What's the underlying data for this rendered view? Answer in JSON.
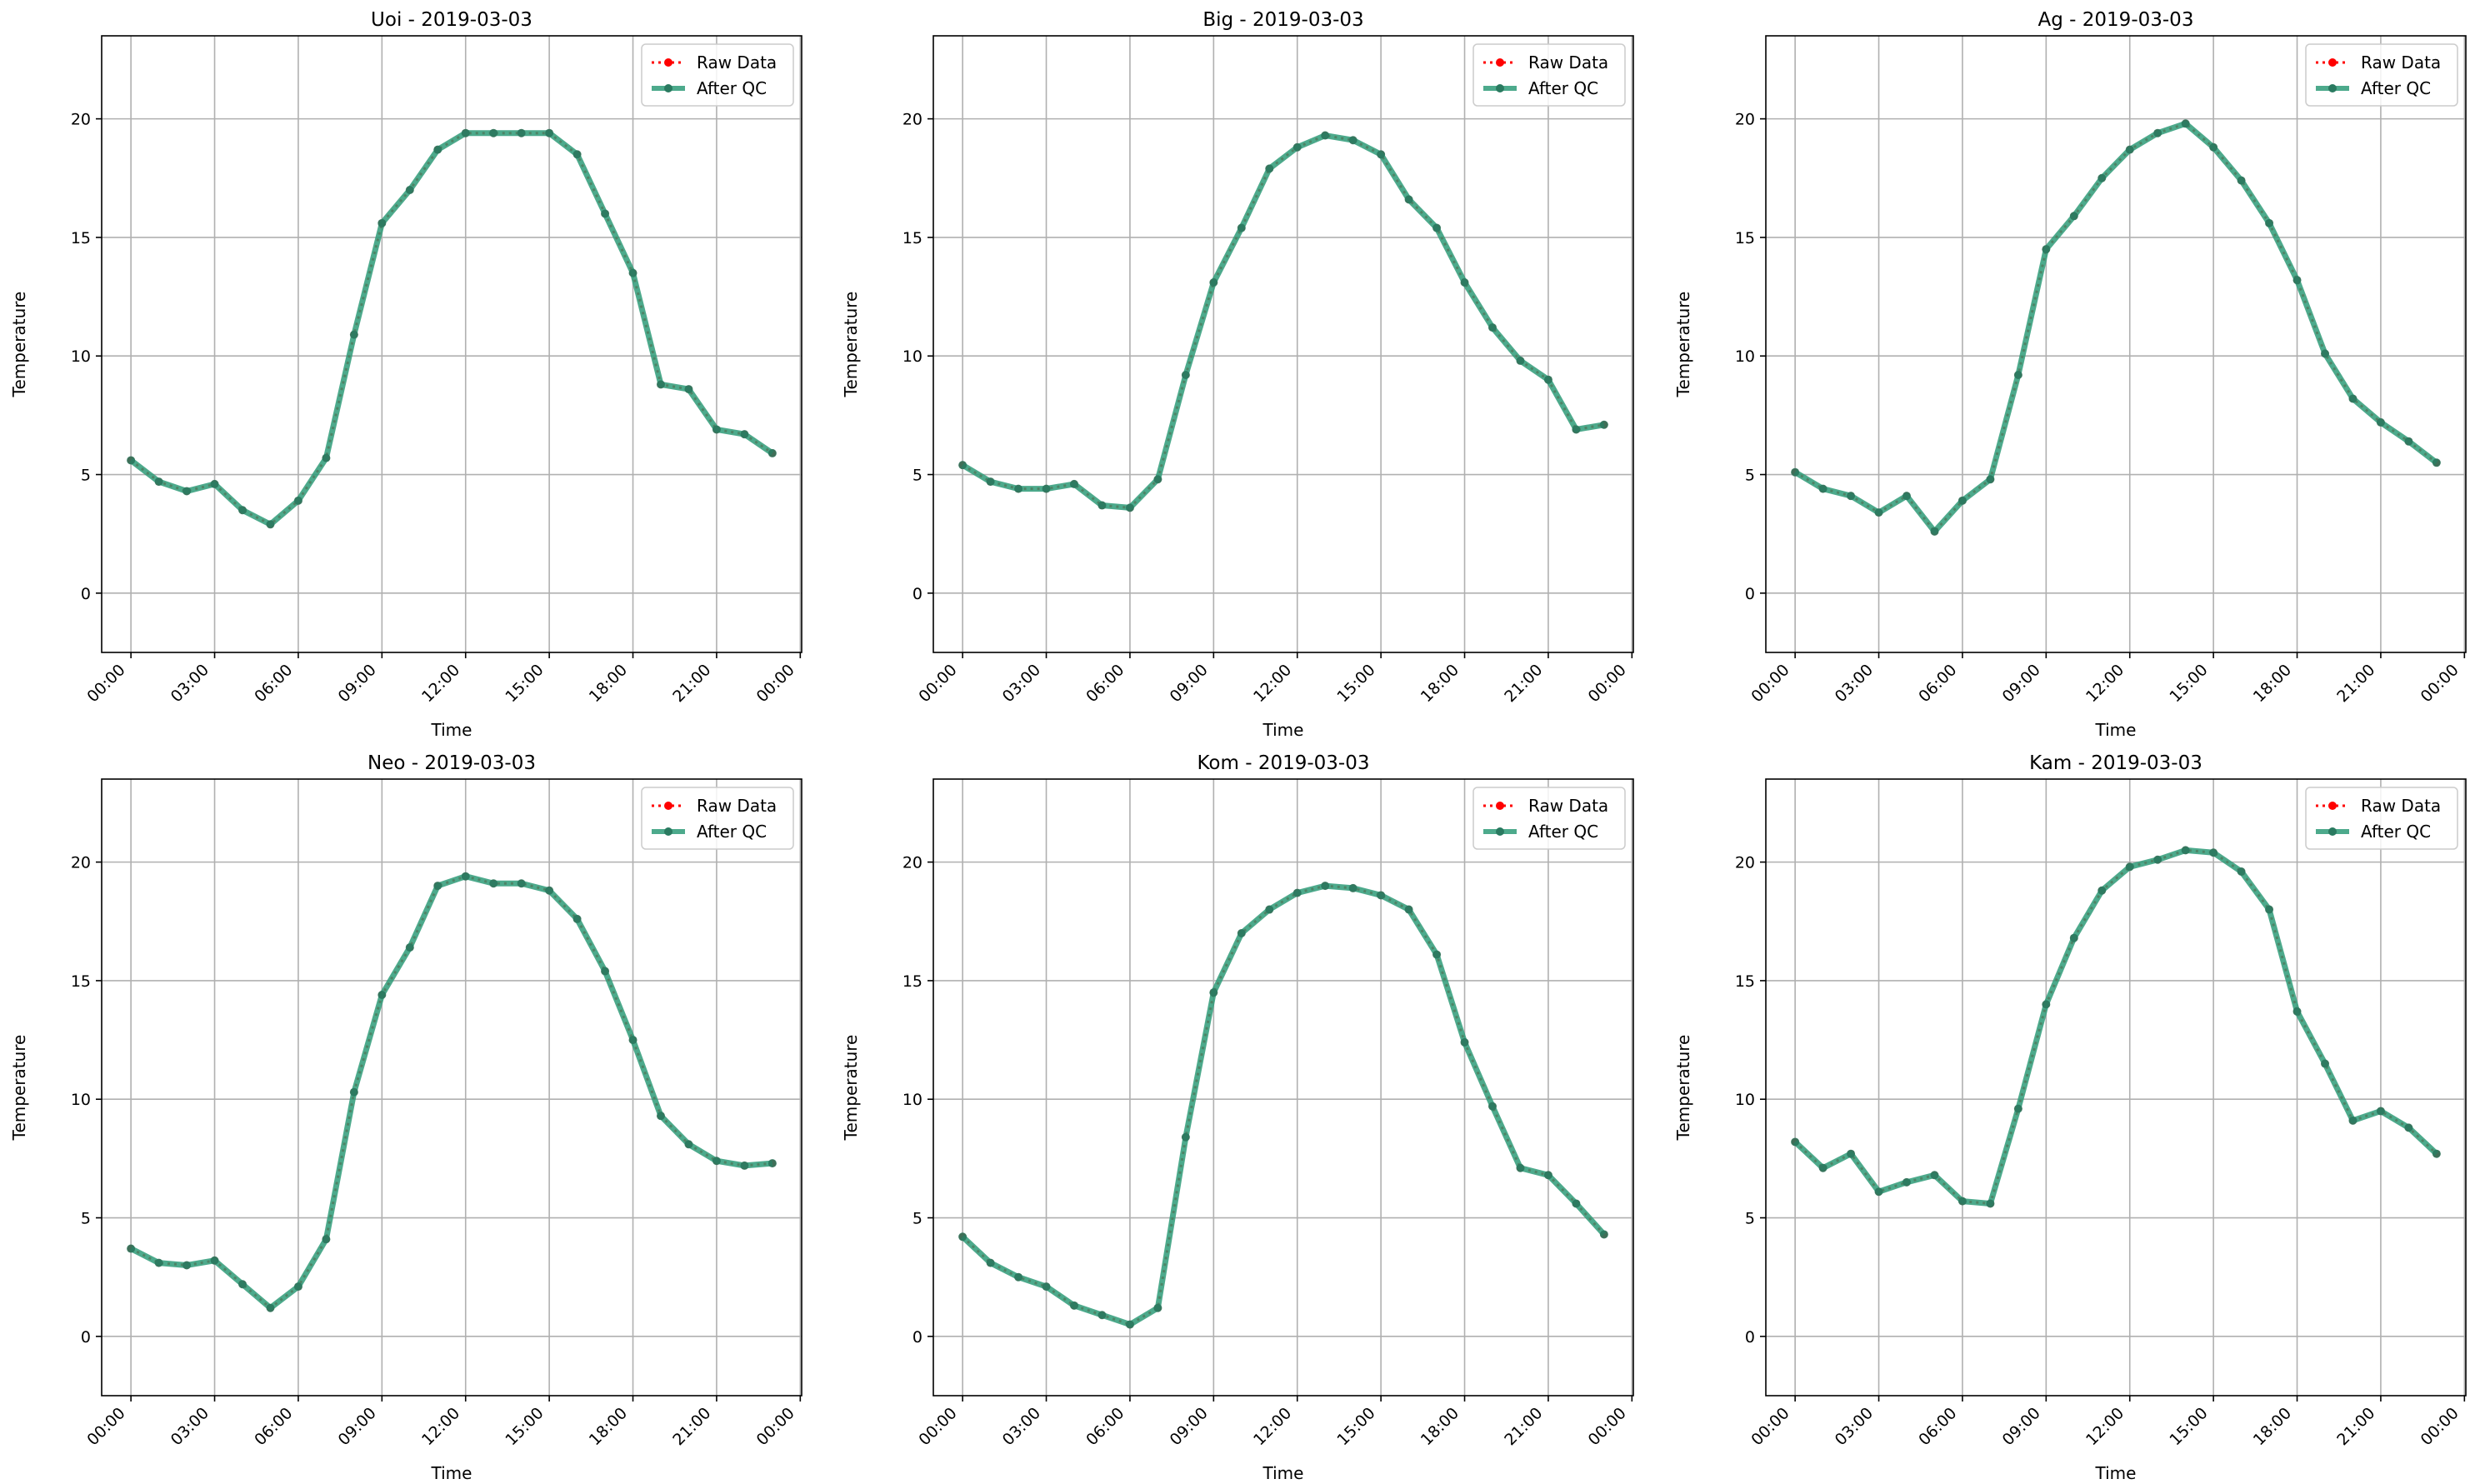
{
  "figure": {
    "background": "#ffffff"
  },
  "style": {
    "raw_color": "#ff0000",
    "qc_color": "#2e9b78",
    "grid_color": "#b0b0b0",
    "axis_color": "#000000"
  },
  "chart_data": [
    {
      "type": "line",
      "title": "Uoi - 2019-03-03",
      "xlabel": "Time",
      "ylabel": "Temperature",
      "x": [
        "00:00",
        "01:00",
        "02:00",
        "03:00",
        "04:00",
        "05:00",
        "06:00",
        "07:00",
        "08:00",
        "09:00",
        "10:00",
        "11:00",
        "12:00",
        "13:00",
        "14:00",
        "15:00",
        "16:00",
        "17:00",
        "18:00",
        "19:00",
        "20:00",
        "21:00",
        "22:00",
        "23:00"
      ],
      "x_ticks": [
        "00:00",
        "03:00",
        "06:00",
        "09:00",
        "12:00",
        "15:00",
        "18:00",
        "21:00",
        "00:00"
      ],
      "ylim": [
        -2.5,
        23.5
      ],
      "y_ticks": [
        0,
        5,
        10,
        15,
        20
      ],
      "grid": true,
      "legend_position": "top-right",
      "series": [
        {
          "name": "Raw Data",
          "values": [
            5.6,
            4.7,
            4.3,
            4.6,
            3.5,
            2.9,
            3.9,
            5.7,
            10.9,
            15.6,
            17.0,
            18.7,
            19.4,
            19.4,
            19.4,
            19.4,
            18.5,
            16.0,
            13.5,
            8.8,
            8.6,
            6.9,
            6.7,
            5.9
          ]
        },
        {
          "name": "After QC",
          "values": [
            5.6,
            4.7,
            4.3,
            4.6,
            3.5,
            2.9,
            3.9,
            5.7,
            10.9,
            15.6,
            17.0,
            18.7,
            19.4,
            19.4,
            19.4,
            19.4,
            18.5,
            16.0,
            13.5,
            8.8,
            8.6,
            6.9,
            6.7,
            5.9
          ]
        }
      ]
    },
    {
      "type": "line",
      "title": "Big - 2019-03-03",
      "xlabel": "Time",
      "ylabel": "Temperature",
      "x": [
        "00:00",
        "01:00",
        "02:00",
        "03:00",
        "04:00",
        "05:00",
        "06:00",
        "07:00",
        "08:00",
        "09:00",
        "10:00",
        "11:00",
        "12:00",
        "13:00",
        "14:00",
        "15:00",
        "16:00",
        "17:00",
        "18:00",
        "19:00",
        "20:00",
        "21:00",
        "22:00",
        "23:00"
      ],
      "x_ticks": [
        "00:00",
        "03:00",
        "06:00",
        "09:00",
        "12:00",
        "15:00",
        "18:00",
        "21:00",
        "00:00"
      ],
      "ylim": [
        -2.5,
        23.5
      ],
      "y_ticks": [
        0,
        5,
        10,
        15,
        20
      ],
      "grid": true,
      "legend_position": "top-right",
      "series": [
        {
          "name": "Raw Data",
          "values": [
            5.4,
            4.7,
            4.4,
            4.4,
            4.6,
            3.7,
            3.6,
            4.8,
            9.2,
            13.1,
            15.4,
            17.9,
            18.8,
            19.3,
            19.1,
            18.5,
            16.6,
            15.4,
            13.1,
            11.2,
            9.8,
            9.0,
            6.9,
            7.1
          ]
        },
        {
          "name": "After QC",
          "values": [
            5.4,
            4.7,
            4.4,
            4.4,
            4.6,
            3.7,
            3.6,
            4.8,
            9.2,
            13.1,
            15.4,
            17.9,
            18.8,
            19.3,
            19.1,
            18.5,
            16.6,
            15.4,
            13.1,
            11.2,
            9.8,
            9.0,
            6.9,
            7.1
          ]
        }
      ]
    },
    {
      "type": "line",
      "title": "Ag - 2019-03-03",
      "xlabel": "Time",
      "ylabel": "Temperature",
      "x": [
        "00:00",
        "01:00",
        "02:00",
        "03:00",
        "04:00",
        "05:00",
        "06:00",
        "07:00",
        "08:00",
        "09:00",
        "10:00",
        "11:00",
        "12:00",
        "13:00",
        "14:00",
        "15:00",
        "16:00",
        "17:00",
        "18:00",
        "19:00",
        "20:00",
        "21:00",
        "22:00",
        "23:00"
      ],
      "x_ticks": [
        "00:00",
        "03:00",
        "06:00",
        "09:00",
        "12:00",
        "15:00",
        "18:00",
        "21:00",
        "00:00"
      ],
      "ylim": [
        -2.5,
        23.5
      ],
      "y_ticks": [
        0,
        5,
        10,
        15,
        20
      ],
      "grid": true,
      "legend_position": "top-right",
      "series": [
        {
          "name": "Raw Data",
          "values": [
            5.1,
            4.4,
            4.1,
            3.4,
            4.1,
            2.6,
            3.9,
            4.8,
            9.2,
            14.5,
            15.9,
            17.5,
            18.7,
            19.4,
            19.8,
            18.8,
            17.4,
            15.6,
            13.2,
            10.1,
            8.2,
            7.2,
            6.4,
            5.5
          ]
        },
        {
          "name": "After QC",
          "values": [
            5.1,
            4.4,
            4.1,
            3.4,
            4.1,
            2.6,
            3.9,
            4.8,
            9.2,
            14.5,
            15.9,
            17.5,
            18.7,
            19.4,
            19.8,
            18.8,
            17.4,
            15.6,
            13.2,
            10.1,
            8.2,
            7.2,
            6.4,
            5.5
          ]
        }
      ]
    },
    {
      "type": "line",
      "title": "Neo - 2019-03-03",
      "xlabel": "Time",
      "ylabel": "Temperature",
      "x": [
        "00:00",
        "01:00",
        "02:00",
        "03:00",
        "04:00",
        "05:00",
        "06:00",
        "07:00",
        "08:00",
        "09:00",
        "10:00",
        "11:00",
        "12:00",
        "13:00",
        "14:00",
        "15:00",
        "16:00",
        "17:00",
        "18:00",
        "19:00",
        "20:00",
        "21:00",
        "22:00",
        "23:00"
      ],
      "x_ticks": [
        "00:00",
        "03:00",
        "06:00",
        "09:00",
        "12:00",
        "15:00",
        "18:00",
        "21:00",
        "00:00"
      ],
      "ylim": [
        -2.5,
        23.5
      ],
      "y_ticks": [
        0,
        5,
        10,
        15,
        20
      ],
      "grid": true,
      "legend_position": "top-right",
      "series": [
        {
          "name": "Raw Data",
          "values": [
            3.7,
            3.1,
            3.0,
            3.2,
            2.2,
            1.2,
            2.1,
            4.1,
            10.3,
            14.4,
            16.4,
            19.0,
            19.4,
            19.1,
            19.1,
            18.8,
            17.6,
            15.4,
            12.5,
            9.3,
            8.1,
            7.4,
            7.2,
            7.3
          ]
        },
        {
          "name": "After QC",
          "values": [
            3.7,
            3.1,
            3.0,
            3.2,
            2.2,
            1.2,
            2.1,
            4.1,
            10.3,
            14.4,
            16.4,
            19.0,
            19.4,
            19.1,
            19.1,
            18.8,
            17.6,
            15.4,
            12.5,
            9.3,
            8.1,
            7.4,
            7.2,
            7.3
          ]
        }
      ]
    },
    {
      "type": "line",
      "title": "Kom - 2019-03-03",
      "xlabel": "Time",
      "ylabel": "Temperature",
      "x": [
        "00:00",
        "01:00",
        "02:00",
        "03:00",
        "04:00",
        "05:00",
        "06:00",
        "07:00",
        "08:00",
        "09:00",
        "10:00",
        "11:00",
        "12:00",
        "13:00",
        "14:00",
        "15:00",
        "16:00",
        "17:00",
        "18:00",
        "19:00",
        "20:00",
        "21:00",
        "22:00",
        "23:00"
      ],
      "x_ticks": [
        "00:00",
        "03:00",
        "06:00",
        "09:00",
        "12:00",
        "15:00",
        "18:00",
        "21:00",
        "00:00"
      ],
      "ylim": [
        -2.5,
        23.5
      ],
      "y_ticks": [
        0,
        5,
        10,
        15,
        20
      ],
      "grid": true,
      "legend_position": "top-right",
      "series": [
        {
          "name": "Raw Data",
          "values": [
            4.2,
            3.1,
            2.5,
            2.1,
            1.3,
            0.9,
            0.5,
            1.2,
            8.4,
            14.5,
            17.0,
            18.0,
            18.7,
            19.0,
            18.9,
            18.6,
            18.0,
            16.1,
            12.4,
            9.7,
            7.1,
            6.8,
            5.6,
            4.3
          ]
        },
        {
          "name": "After QC",
          "values": [
            4.2,
            3.1,
            2.5,
            2.1,
            1.3,
            0.9,
            0.5,
            1.2,
            8.4,
            14.5,
            17.0,
            18.0,
            18.7,
            19.0,
            18.9,
            18.6,
            18.0,
            16.1,
            12.4,
            9.7,
            7.1,
            6.8,
            5.6,
            4.3
          ]
        }
      ]
    },
    {
      "type": "line",
      "title": "Kam - 2019-03-03",
      "xlabel": "Time",
      "ylabel": "Temperature",
      "x": [
        "00:00",
        "01:00",
        "02:00",
        "03:00",
        "04:00",
        "05:00",
        "06:00",
        "07:00",
        "08:00",
        "09:00",
        "10:00",
        "11:00",
        "12:00",
        "13:00",
        "14:00",
        "15:00",
        "16:00",
        "17:00",
        "18:00",
        "19:00",
        "20:00",
        "21:00",
        "22:00",
        "23:00"
      ],
      "x_ticks": [
        "00:00",
        "03:00",
        "06:00",
        "09:00",
        "12:00",
        "15:00",
        "18:00",
        "21:00",
        "00:00"
      ],
      "ylim": [
        -2.5,
        23.5
      ],
      "y_ticks": [
        0,
        5,
        10,
        15,
        20
      ],
      "grid": true,
      "legend_position": "top-right",
      "series": [
        {
          "name": "Raw Data",
          "values": [
            8.2,
            7.1,
            7.7,
            6.1,
            6.5,
            6.8,
            5.7,
            5.6,
            9.6,
            14.0,
            16.8,
            18.8,
            19.8,
            20.1,
            20.5,
            20.4,
            19.6,
            18.0,
            13.7,
            11.5,
            9.1,
            9.5,
            8.8,
            7.7
          ]
        },
        {
          "name": "After QC",
          "values": [
            8.2,
            7.1,
            7.7,
            6.1,
            6.5,
            6.8,
            5.7,
            5.6,
            9.6,
            14.0,
            16.8,
            18.8,
            19.8,
            20.1,
            20.5,
            20.4,
            19.6,
            18.0,
            13.7,
            11.5,
            9.1,
            9.5,
            8.8,
            7.7
          ]
        }
      ]
    }
  ]
}
